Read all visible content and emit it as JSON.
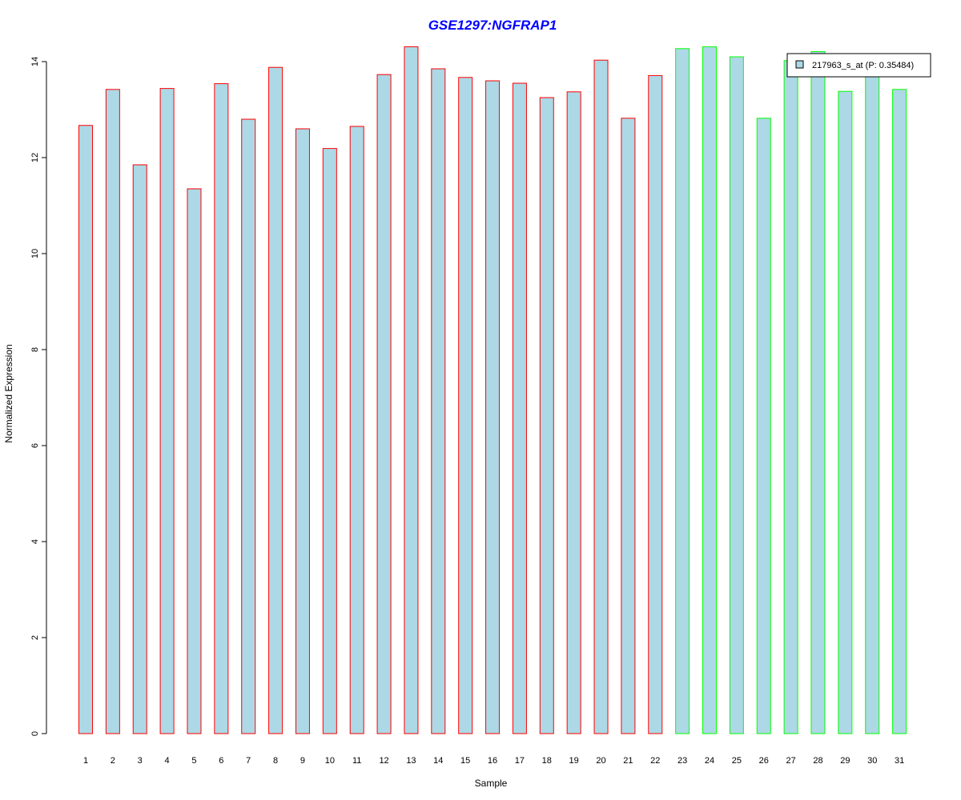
{
  "chart_data": {
    "type": "bar",
    "title": "GSE1297:NGFRAP1",
    "xlabel": "Sample",
    "ylabel": "Normalized Expression",
    "ylim": [
      0,
      14
    ],
    "yticks": [
      "0",
      "2",
      "4",
      "6",
      "8",
      "10",
      "12",
      "14"
    ],
    "grid": false,
    "categories": [
      "1",
      "2",
      "3",
      "4",
      "5",
      "6",
      "7",
      "8",
      "9",
      "10",
      "11",
      "12",
      "13",
      "14",
      "15",
      "16",
      "17",
      "18",
      "19",
      "20",
      "21",
      "22",
      "23",
      "24",
      "25",
      "26",
      "27",
      "28",
      "29",
      "30",
      "31"
    ],
    "series": [
      {
        "name": "217963_s_at (P: 0.35484)",
        "values": [
          12.67,
          13.42,
          11.85,
          13.44,
          11.35,
          13.54,
          12.8,
          13.88,
          12.6,
          12.19,
          12.65,
          13.73,
          14.31,
          13.85,
          13.67,
          13.6,
          13.55,
          13.25,
          13.37,
          14.03,
          12.82,
          13.71,
          14.27,
          14.31,
          14.1,
          12.82,
          14.02,
          14.21,
          13.38,
          13.7,
          13.42
        ],
        "fill": "#add8e6"
      }
    ],
    "group_border_colors": [
      "#ff0000",
      "#ff0000",
      "#ff0000",
      "#ff0000",
      "#ff0000",
      "#ff0000",
      "#ff0000",
      "#ff0000",
      "#ff0000",
      "#ff0000",
      "#ff0000",
      "#ff0000",
      "#ff0000",
      "#ff0000",
      "#ff0000",
      "#ff0000",
      "#ff0000",
      "#ff0000",
      "#ff0000",
      "#ff0000",
      "#ff0000",
      "#ff0000",
      "#00ff00",
      "#00ff00",
      "#00ff00",
      "#00ff00",
      "#00ff00",
      "#00ff00",
      "#00ff00",
      "#00ff00",
      "#00ff00"
    ],
    "legend_position": "top-right",
    "title_color": "#0000ff"
  }
}
